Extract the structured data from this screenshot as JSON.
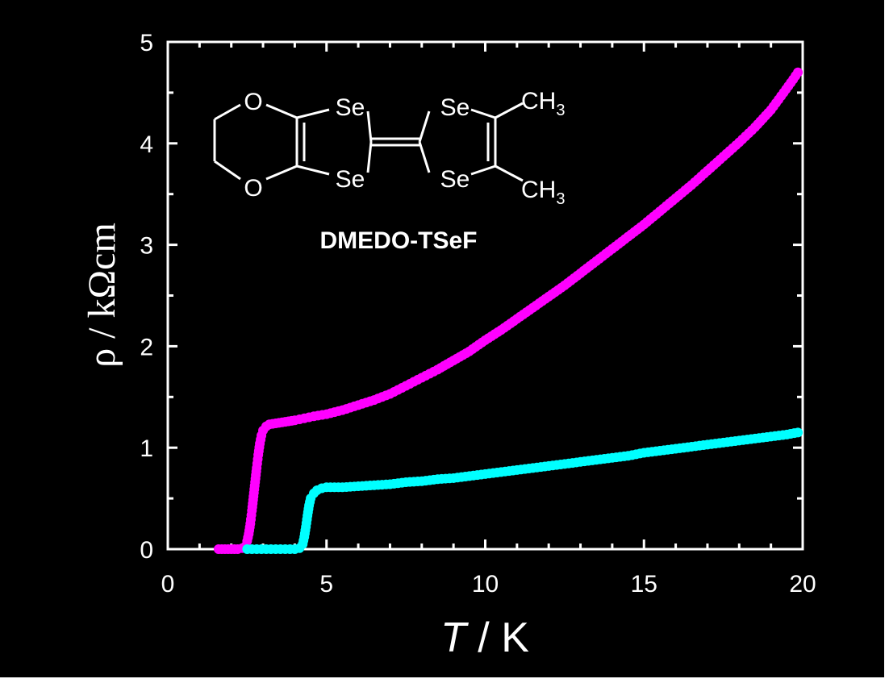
{
  "chart_data": {
    "type": "scatter",
    "title": "",
    "xlabel": "T / K",
    "xlabel_italic": "T",
    "xlabel_rest": " / K",
    "ylabel": "ρ / kΩcm",
    "xlim": [
      0,
      20
    ],
    "ylim": [
      0,
      5
    ],
    "xticks": [
      0,
      5,
      10,
      15,
      20
    ],
    "yticks": [
      0,
      1,
      2,
      3,
      4,
      5
    ],
    "background": "#000000",
    "axis_color": "#ffffff",
    "series": [
      {
        "name": "magenta",
        "color": "#ff00ff",
        "points": [
          [
            1.6,
            0.0
          ],
          [
            1.8,
            0.0
          ],
          [
            2.0,
            0.0
          ],
          [
            2.2,
            0.0
          ],
          [
            2.35,
            0.01
          ],
          [
            2.45,
            0.03
          ],
          [
            2.5,
            0.08
          ],
          [
            2.55,
            0.15
          ],
          [
            2.6,
            0.25
          ],
          [
            2.65,
            0.38
          ],
          [
            2.7,
            0.52
          ],
          [
            2.75,
            0.66
          ],
          [
            2.8,
            0.8
          ],
          [
            2.85,
            0.93
          ],
          [
            2.9,
            1.04
          ],
          [
            2.95,
            1.12
          ],
          [
            3.0,
            1.17
          ],
          [
            3.1,
            1.21
          ],
          [
            3.2,
            1.23
          ],
          [
            3.4,
            1.24
          ],
          [
            3.6,
            1.25
          ],
          [
            3.8,
            1.26
          ],
          [
            4.0,
            1.27
          ],
          [
            4.3,
            1.29
          ],
          [
            4.6,
            1.31
          ],
          [
            5.0,
            1.33
          ],
          [
            5.5,
            1.37
          ],
          [
            6.0,
            1.42
          ],
          [
            6.5,
            1.47
          ],
          [
            7.0,
            1.53
          ],
          [
            7.5,
            1.61
          ],
          [
            8.0,
            1.69
          ],
          [
            8.5,
            1.77
          ],
          [
            9.0,
            1.86
          ],
          [
            9.5,
            1.95
          ],
          [
            10.0,
            2.06
          ],
          [
            10.5,
            2.16
          ],
          [
            11.0,
            2.27
          ],
          [
            11.5,
            2.38
          ],
          [
            12.0,
            2.49
          ],
          [
            12.5,
            2.6
          ],
          [
            13.0,
            2.72
          ],
          [
            13.5,
            2.84
          ],
          [
            14.0,
            2.96
          ],
          [
            14.5,
            3.08
          ],
          [
            15.0,
            3.2
          ],
          [
            15.5,
            3.33
          ],
          [
            16.0,
            3.46
          ],
          [
            16.5,
            3.59
          ],
          [
            17.0,
            3.73
          ],
          [
            17.5,
            3.87
          ],
          [
            18.0,
            4.01
          ],
          [
            18.5,
            4.16
          ],
          [
            19.0,
            4.33
          ],
          [
            19.4,
            4.5
          ],
          [
            19.7,
            4.63
          ],
          [
            19.85,
            4.7
          ]
        ]
      },
      {
        "name": "cyan",
        "color": "#00ffff",
        "points": [
          [
            2.5,
            0.0
          ],
          [
            2.8,
            0.0
          ],
          [
            3.1,
            0.0
          ],
          [
            3.4,
            0.0
          ],
          [
            3.7,
            0.0
          ],
          [
            4.0,
            0.0
          ],
          [
            4.15,
            0.01
          ],
          [
            4.25,
            0.05
          ],
          [
            4.3,
            0.12
          ],
          [
            4.35,
            0.22
          ],
          [
            4.4,
            0.33
          ],
          [
            4.45,
            0.43
          ],
          [
            4.5,
            0.5
          ],
          [
            4.6,
            0.55
          ],
          [
            4.7,
            0.58
          ],
          [
            4.85,
            0.6
          ],
          [
            5.0,
            0.61
          ],
          [
            5.5,
            0.61
          ],
          [
            6.0,
            0.62
          ],
          [
            6.5,
            0.63
          ],
          [
            7.0,
            0.64
          ],
          [
            7.5,
            0.66
          ],
          [
            8.0,
            0.67
          ],
          [
            8.5,
            0.69
          ],
          [
            9.0,
            0.7
          ],
          [
            9.5,
            0.72
          ],
          [
            10.0,
            0.74
          ],
          [
            10.5,
            0.76
          ],
          [
            11.0,
            0.78
          ],
          [
            11.5,
            0.8
          ],
          [
            12.0,
            0.82
          ],
          [
            12.5,
            0.84
          ],
          [
            13.0,
            0.86
          ],
          [
            13.5,
            0.88
          ],
          [
            14.0,
            0.9
          ],
          [
            14.5,
            0.92
          ],
          [
            15.0,
            0.95
          ],
          [
            15.5,
            0.97
          ],
          [
            16.0,
            0.99
          ],
          [
            16.5,
            1.01
          ],
          [
            17.0,
            1.03
          ],
          [
            17.5,
            1.05
          ],
          [
            18.0,
            1.07
          ],
          [
            18.5,
            1.09
          ],
          [
            19.0,
            1.11
          ],
          [
            19.5,
            1.13
          ],
          [
            19.85,
            1.15
          ]
        ]
      }
    ],
    "inset": {
      "compound_name": "DMEDO-TSeF",
      "atom_o": "O",
      "atom_se": "Se",
      "methyl_main": "CH",
      "methyl_sub": "3"
    }
  }
}
